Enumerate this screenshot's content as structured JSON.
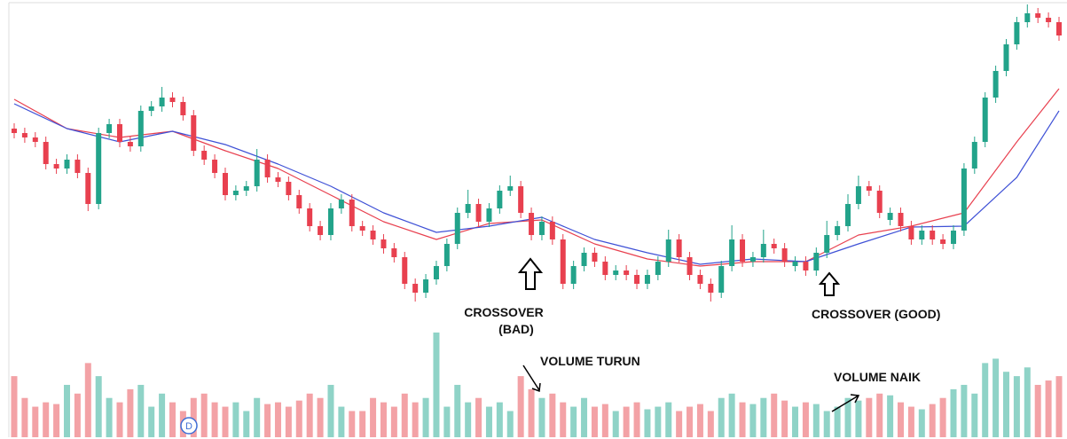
{
  "chart_data": {
    "type": "candlestick",
    "ylim": [
      0,
      360
    ],
    "volume_ylim": [
      0,
      125
    ],
    "up_color": "#22a38a",
    "down_color": "#e8404f",
    "volume_up_color": "#8fd3c7",
    "volume_down_color": "#f3a2a6",
    "open": [
      215,
      210,
      205,
      200,
      175,
      170,
      180,
      165,
      130,
      210,
      220,
      200,
      195,
      235,
      240,
      250,
      245,
      230,
      190,
      180,
      165,
      140,
      145,
      150,
      180,
      160,
      155,
      140,
      125,
      105,
      95,
      125,
      135,
      105,
      100,
      90,
      80,
      70,
      40,
      30,
      45,
      60,
      85,
      120,
      130,
      110,
      125,
      145,
      150,
      120,
      95,
      110,
      90,
      40,
      60,
      75,
      65,
      50,
      55,
      50,
      40,
      50,
      65,
      90,
      70,
      50,
      40,
      30,
      60,
      90,
      65,
      70,
      85,
      80,
      60,
      65,
      55,
      75,
      95,
      105,
      130,
      150,
      145,
      112,
      120,
      105,
      90,
      100,
      90,
      85,
      100,
      170,
      200,
      250,
      280,
      310,
      335,
      345,
      340,
      335
    ],
    "high": [
      221,
      216,
      211,
      206,
      181,
      186,
      186,
      171,
      216,
      226,
      226,
      206,
      241,
      246,
      262,
      256,
      251,
      236,
      196,
      186,
      171,
      151,
      156,
      192,
      186,
      166,
      161,
      146,
      131,
      111,
      131,
      141,
      141,
      111,
      106,
      96,
      86,
      76,
      46,
      51,
      66,
      91,
      126,
      146,
      136,
      131,
      151,
      162,
      156,
      126,
      116,
      116,
      96,
      66,
      81,
      81,
      71,
      61,
      61,
      56,
      56,
      71,
      101,
      96,
      76,
      56,
      46,
      66,
      106,
      96,
      76,
      101,
      91,
      86,
      71,
      71,
      81,
      111,
      111,
      141,
      162,
      156,
      151,
      126,
      126,
      111,
      106,
      106,
      96,
      106,
      176,
      206,
      256,
      286,
      316,
      341,
      355,
      351,
      346,
      341
    ],
    "low": [
      204,
      199,
      194,
      169,
      164,
      164,
      159,
      122,
      124,
      204,
      194,
      189,
      189,
      229,
      234,
      239,
      224,
      184,
      174,
      159,
      134,
      134,
      139,
      144,
      154,
      149,
      134,
      119,
      99,
      89,
      89,
      119,
      99,
      94,
      84,
      74,
      64,
      34,
      20,
      24,
      39,
      54,
      79,
      114,
      104,
      104,
      119,
      139,
      114,
      89,
      89,
      84,
      34,
      34,
      54,
      59,
      44,
      44,
      44,
      34,
      34,
      44,
      59,
      64,
      44,
      34,
      20,
      24,
      54,
      59,
      59,
      64,
      74,
      59,
      54,
      49,
      49,
      69,
      89,
      99,
      124,
      139,
      114,
      106,
      99,
      84,
      84,
      84,
      79,
      79,
      94,
      164,
      194,
      244,
      274,
      304,
      329,
      334,
      329,
      314
    ],
    "close": [
      210,
      205,
      200,
      175,
      170,
      180,
      165,
      130,
      210,
      220,
      200,
      195,
      235,
      240,
      250,
      245,
      230,
      190,
      180,
      165,
      140,
      145,
      150,
      180,
      160,
      155,
      140,
      125,
      105,
      95,
      125,
      135,
      105,
      100,
      90,
      80,
      70,
      40,
      30,
      45,
      60,
      85,
      120,
      130,
      110,
      125,
      145,
      150,
      120,
      95,
      110,
      90,
      40,
      60,
      75,
      65,
      50,
      55,
      50,
      40,
      50,
      65,
      90,
      70,
      50,
      40,
      30,
      60,
      90,
      65,
      70,
      85,
      80,
      65,
      65,
      55,
      75,
      95,
      105,
      130,
      150,
      145,
      120,
      120,
      105,
      90,
      100,
      90,
      85,
      100,
      170,
      200,
      250,
      280,
      310,
      335,
      345,
      340,
      335,
      320
    ],
    "volume": [
      70,
      45,
      35,
      40,
      38,
      60,
      50,
      85,
      70,
      45,
      40,
      55,
      60,
      35,
      50,
      40,
      30,
      45,
      50,
      40,
      35,
      40,
      30,
      45,
      38,
      40,
      35,
      42,
      50,
      45,
      60,
      35,
      30,
      30,
      45,
      40,
      35,
      50,
      40,
      45,
      120,
      35,
      60,
      40,
      45,
      35,
      40,
      30,
      70,
      55,
      45,
      50,
      40,
      35,
      45,
      35,
      38,
      30,
      35,
      40,
      32,
      35,
      40,
      30,
      35,
      38,
      30,
      45,
      50,
      40,
      38,
      45,
      50,
      42,
      35,
      40,
      38,
      30,
      35,
      45,
      42,
      45,
      50,
      48,
      40,
      35,
      32,
      38,
      45,
      55,
      60,
      50,
      85,
      90,
      75,
      70,
      80,
      60,
      65,
      70
    ],
    "moving_averages": [
      {
        "color": "#e8404f",
        "x": [
          0,
          5,
          10,
          15,
          20,
          25,
          30,
          35,
          40,
          45,
          50,
          55,
          60,
          65,
          70,
          75,
          80,
          85,
          90,
          95,
          99
        ],
        "values": [
          248,
          215,
          205,
          212,
          190,
          170,
          140,
          110,
          90,
          108,
          112,
          85,
          68,
          60,
          65,
          65,
          95,
          105,
          120,
          200,
          260
        ]
      },
      {
        "color": "#3f51d6",
        "x": [
          0,
          5,
          10,
          15,
          20,
          25,
          30,
          35,
          40,
          45,
          50,
          55,
          60,
          65,
          70,
          75,
          80,
          85,
          90,
          95,
          99
        ],
        "values": [
          243,
          215,
          200,
          212,
          197,
          175,
          150,
          120,
          98,
          105,
          115,
          90,
          75,
          62,
          68,
          65,
          85,
          104,
          105,
          160,
          235
        ]
      }
    ],
    "annotations": {
      "crossover_bad": [
        "CROSSOVER",
        "(BAD)"
      ],
      "crossover_good": "CROSSOVER (GOOD)",
      "volume_down": "VOLUME TURUN",
      "volume_up": "VOLUME NAIK"
    },
    "dividend_marker": "D"
  }
}
